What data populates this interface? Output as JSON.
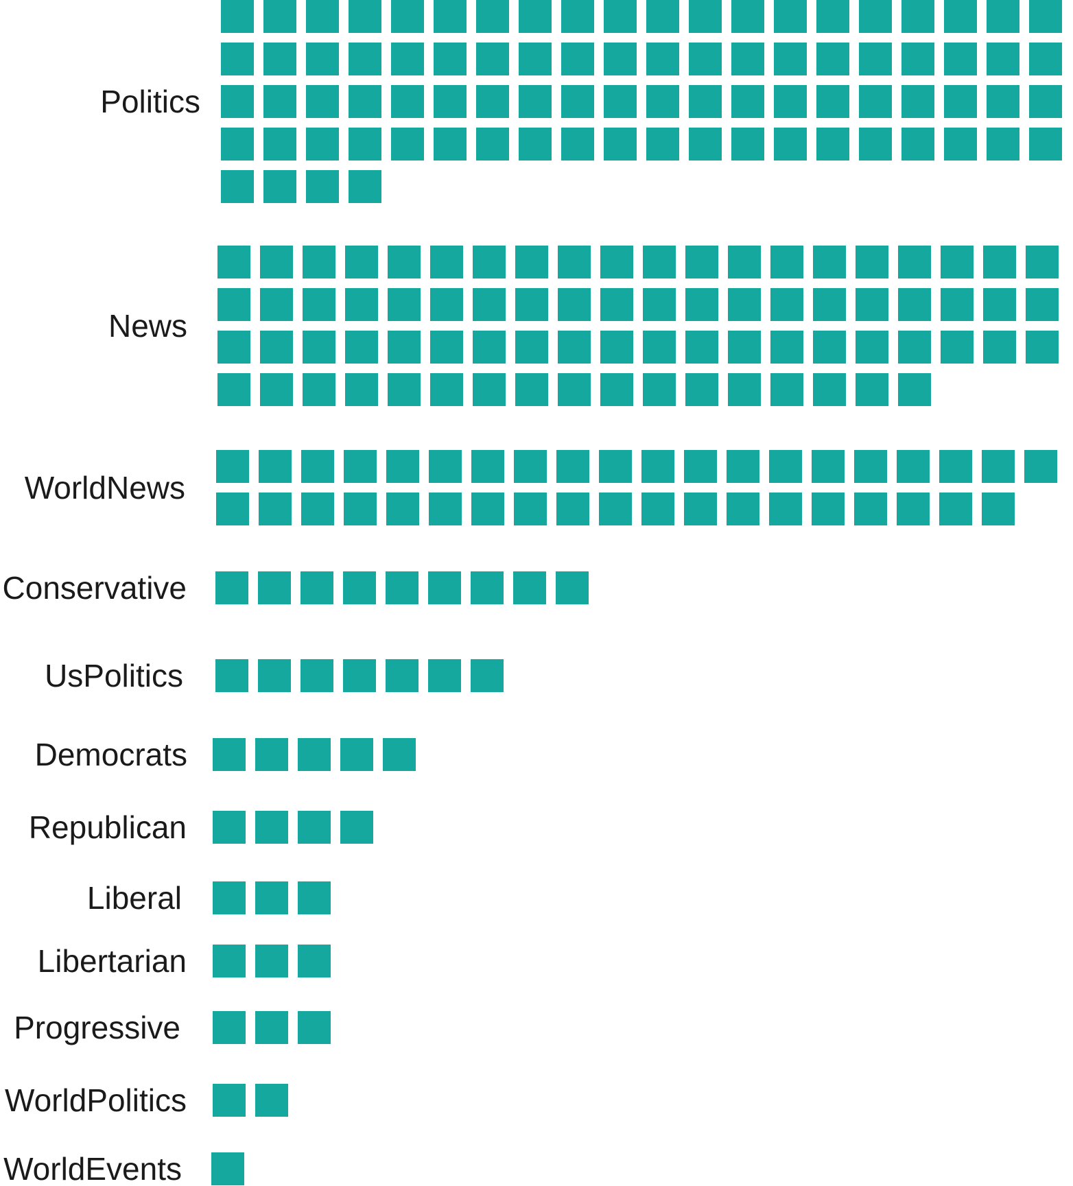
{
  "chart_data": {
    "type": "waffle",
    "color": "#14A89E",
    "categories": [
      "Politics",
      "News",
      "WorldNews",
      "Conservative",
      "UsPolitics",
      "Democrats",
      "Republican",
      "Liberal",
      "Libertarian",
      "Progressive",
      "WorldPolitics",
      "WorldEvents"
    ],
    "values": [
      84,
      77,
      39,
      9,
      7,
      5,
      4,
      3,
      3,
      3,
      2,
      1
    ],
    "squares_per_row": 20
  }
}
